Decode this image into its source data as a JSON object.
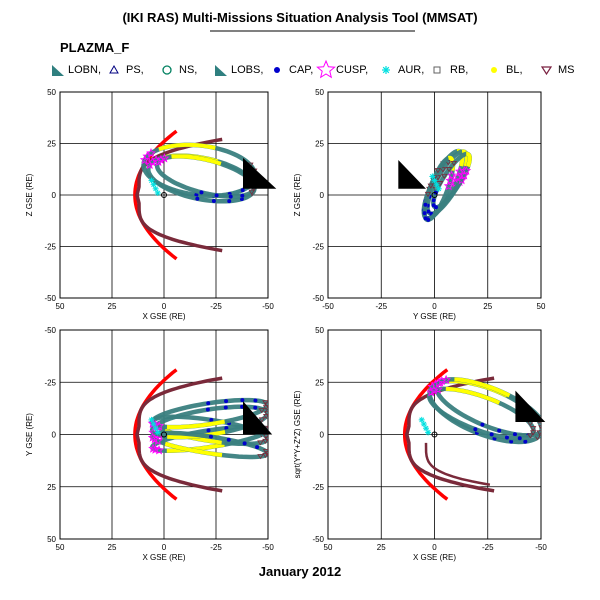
{
  "header": {
    "title": "(IKI RAS) Multi-Missions Situation Analysis Tool (MMSAT)",
    "mission": "PLAZMA_F",
    "date": "January 2012"
  },
  "legend": [
    {
      "label": "LOBN,",
      "symbol": "triangle-filled",
      "color": "#2f7f7f"
    },
    {
      "label": "PS,",
      "symbol": "triangle-up-open",
      "color": "#000080"
    },
    {
      "label": "NS,",
      "symbol": "circle-open",
      "color": "#008060"
    },
    {
      "label": "LOBS,",
      "symbol": "triangle-filled",
      "color": "#2f7f7f"
    },
    {
      "label": "CAP,",
      "symbol": "dot",
      "color": "#0000cc"
    },
    {
      "label": "CUSP,",
      "symbol": "star-open",
      "color": "#ff00ff"
    },
    {
      "label": "AUR,",
      "symbol": "asterisk",
      "color": "#00e0e0"
    },
    {
      "label": "RB,",
      "symbol": "square-open",
      "color": "#606060"
    },
    {
      "label": "BL,",
      "symbol": "dot",
      "color": "#ffff00"
    },
    {
      "label": "MS",
      "symbol": "triangle-down-open",
      "color": "#7a2040"
    }
  ],
  "colors": {
    "magnetopause": "#7a2a3a",
    "bow_shock": "#ff0000",
    "orbit_lobe": "#3a8080",
    "boundary_layer": "#ffff00",
    "cap": "#0000cc",
    "cusp": "#ff00ff",
    "aurora": "#00e0e0",
    "sun_marker": "#000000"
  },
  "chart_data": [
    {
      "type": "scatter",
      "panel": "X-Z",
      "xlabel": "X GSE (RE)",
      "ylabel": "Z GSE (RE)",
      "xlim": [
        50,
        -50
      ],
      "ylim": [
        -50,
        50
      ],
      "xticks": [
        50,
        25,
        0,
        -25,
        -50
      ],
      "yticks": [
        50,
        25,
        0,
        -25,
        -50
      ],
      "grid": true
    },
    {
      "type": "scatter",
      "panel": "Y-Z",
      "xlabel": "Y GSE (RE)",
      "ylabel": "Z GSE (RE)",
      "xlim": [
        -50,
        50
      ],
      "ylim": [
        -50,
        50
      ],
      "xticks": [
        -50,
        -25,
        0,
        25,
        50
      ],
      "yticks": [
        50,
        25,
        0,
        -25,
        -50
      ],
      "grid": true
    },
    {
      "type": "scatter",
      "panel": "X-Y",
      "xlabel": "X GSE (RE)",
      "ylabel": "Y GSE (RE)",
      "xlim": [
        50,
        -50
      ],
      "ylim": [
        50,
        -50
      ],
      "xticks": [
        50,
        25,
        0,
        -25,
        -50
      ],
      "yticks": [
        -50,
        -25,
        0,
        25,
        50
      ],
      "grid": true
    },
    {
      "type": "scatter",
      "panel": "X-R",
      "xlabel": "X GSE (RE)",
      "ylabel": "sqrt(Y*Y+Z*Z) GSE (RE)",
      "xlim": [
        50,
        -50
      ],
      "ylim": [
        -50,
        50
      ],
      "xticks": [
        50,
        25,
        0,
        -25,
        -50
      ],
      "yticks": [
        50,
        25,
        0,
        -25,
        -50
      ],
      "grid": true
    }
  ]
}
